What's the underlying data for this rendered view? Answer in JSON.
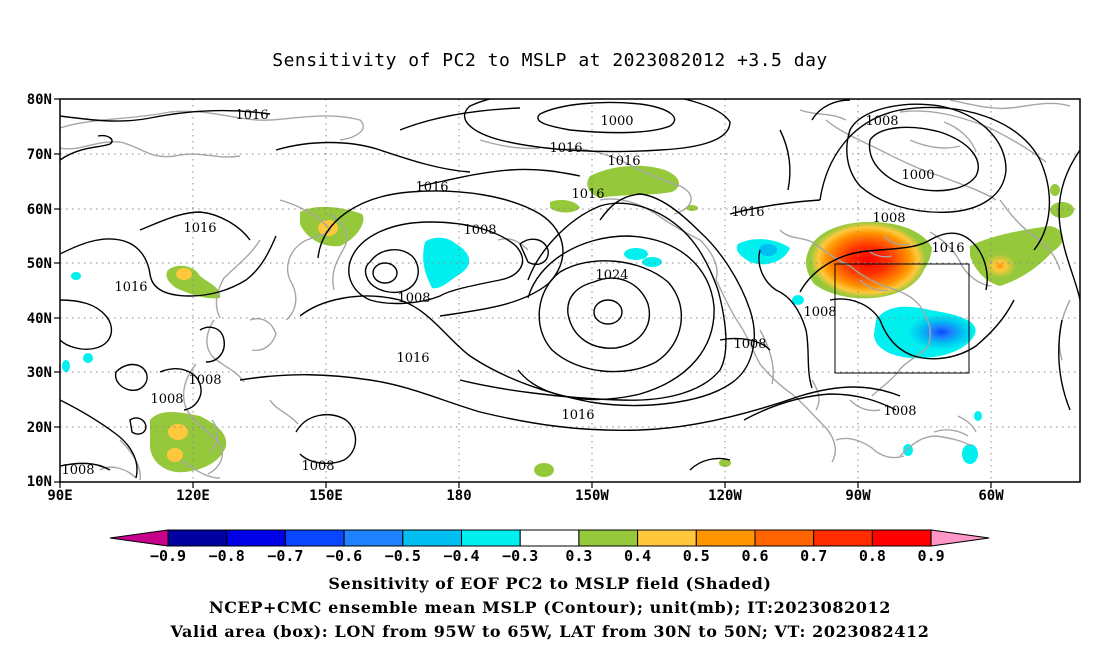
{
  "title": "Sensitivity of PC2 to MSLP at 2023082012 +3.5 day",
  "map": {
    "lat_labels": [
      "80N",
      "70N",
      "60N",
      "50N",
      "40N",
      "30N",
      "20N",
      "10N"
    ],
    "lon_labels": [
      "90E",
      "120E",
      "150E",
      "180",
      "150W",
      "120W",
      "90W",
      "60W"
    ],
    "contour_labels": {
      "c1000a": "1000",
      "c1000b": "1000",
      "c1008a": "1008",
      "c1008b": "1008",
      "c1008c": "1008",
      "c1008d": "1008",
      "c1008e": "1008",
      "c1008f": "1008",
      "c1008g": "1008",
      "c1008h": "1008",
      "c1008i": "1008",
      "c1008j": "1008",
      "c1008k": "1008",
      "c1016a": "1016",
      "c1016b": "1016",
      "c1016c": "1016",
      "c1016d": "1016",
      "c1016e": "1016",
      "c1016f": "1016",
      "c1016g": "1016",
      "c1016h": "1016",
      "c1016i": "1016",
      "c1016j": "1016",
      "c1016k": "1016",
      "c1024": "1024"
    },
    "valid_box": {
      "lon_range": "95W to 65W",
      "lat_range": "30N to 50N"
    }
  },
  "colorbar": {
    "labels": [
      "−0.9",
      "−0.8",
      "−0.7",
      "−0.6",
      "−0.5",
      "−0.4",
      "−0.3",
      "0.3",
      "0.4",
      "0.5",
      "0.6",
      "0.7",
      "0.8",
      "0.9"
    ],
    "colors": {
      "low_arrow": "#c8008c",
      "bins": [
        "#0000a0",
        "#0000e6",
        "#0a46ff",
        "#1e82ff",
        "#00bef0",
        "#00f0f0",
        "#ffffff",
        "#96c83c",
        "#ffc83c",
        "#ff9600",
        "#ff6400",
        "#ff2d00",
        "#ff0000"
      ],
      "high_arrow": "#ff96c8"
    }
  },
  "captions": {
    "line1": "Sensitivity of EOF PC2 to MSLP field (Shaded)",
    "line2": "NCEP+CMC ensemble mean MSLP (Contour); unit(mb); IT:2023082012",
    "line3": "Valid area (box): LON from 95W to 65W, LAT from 30N to 50N; VT: 2023082412"
  }
}
